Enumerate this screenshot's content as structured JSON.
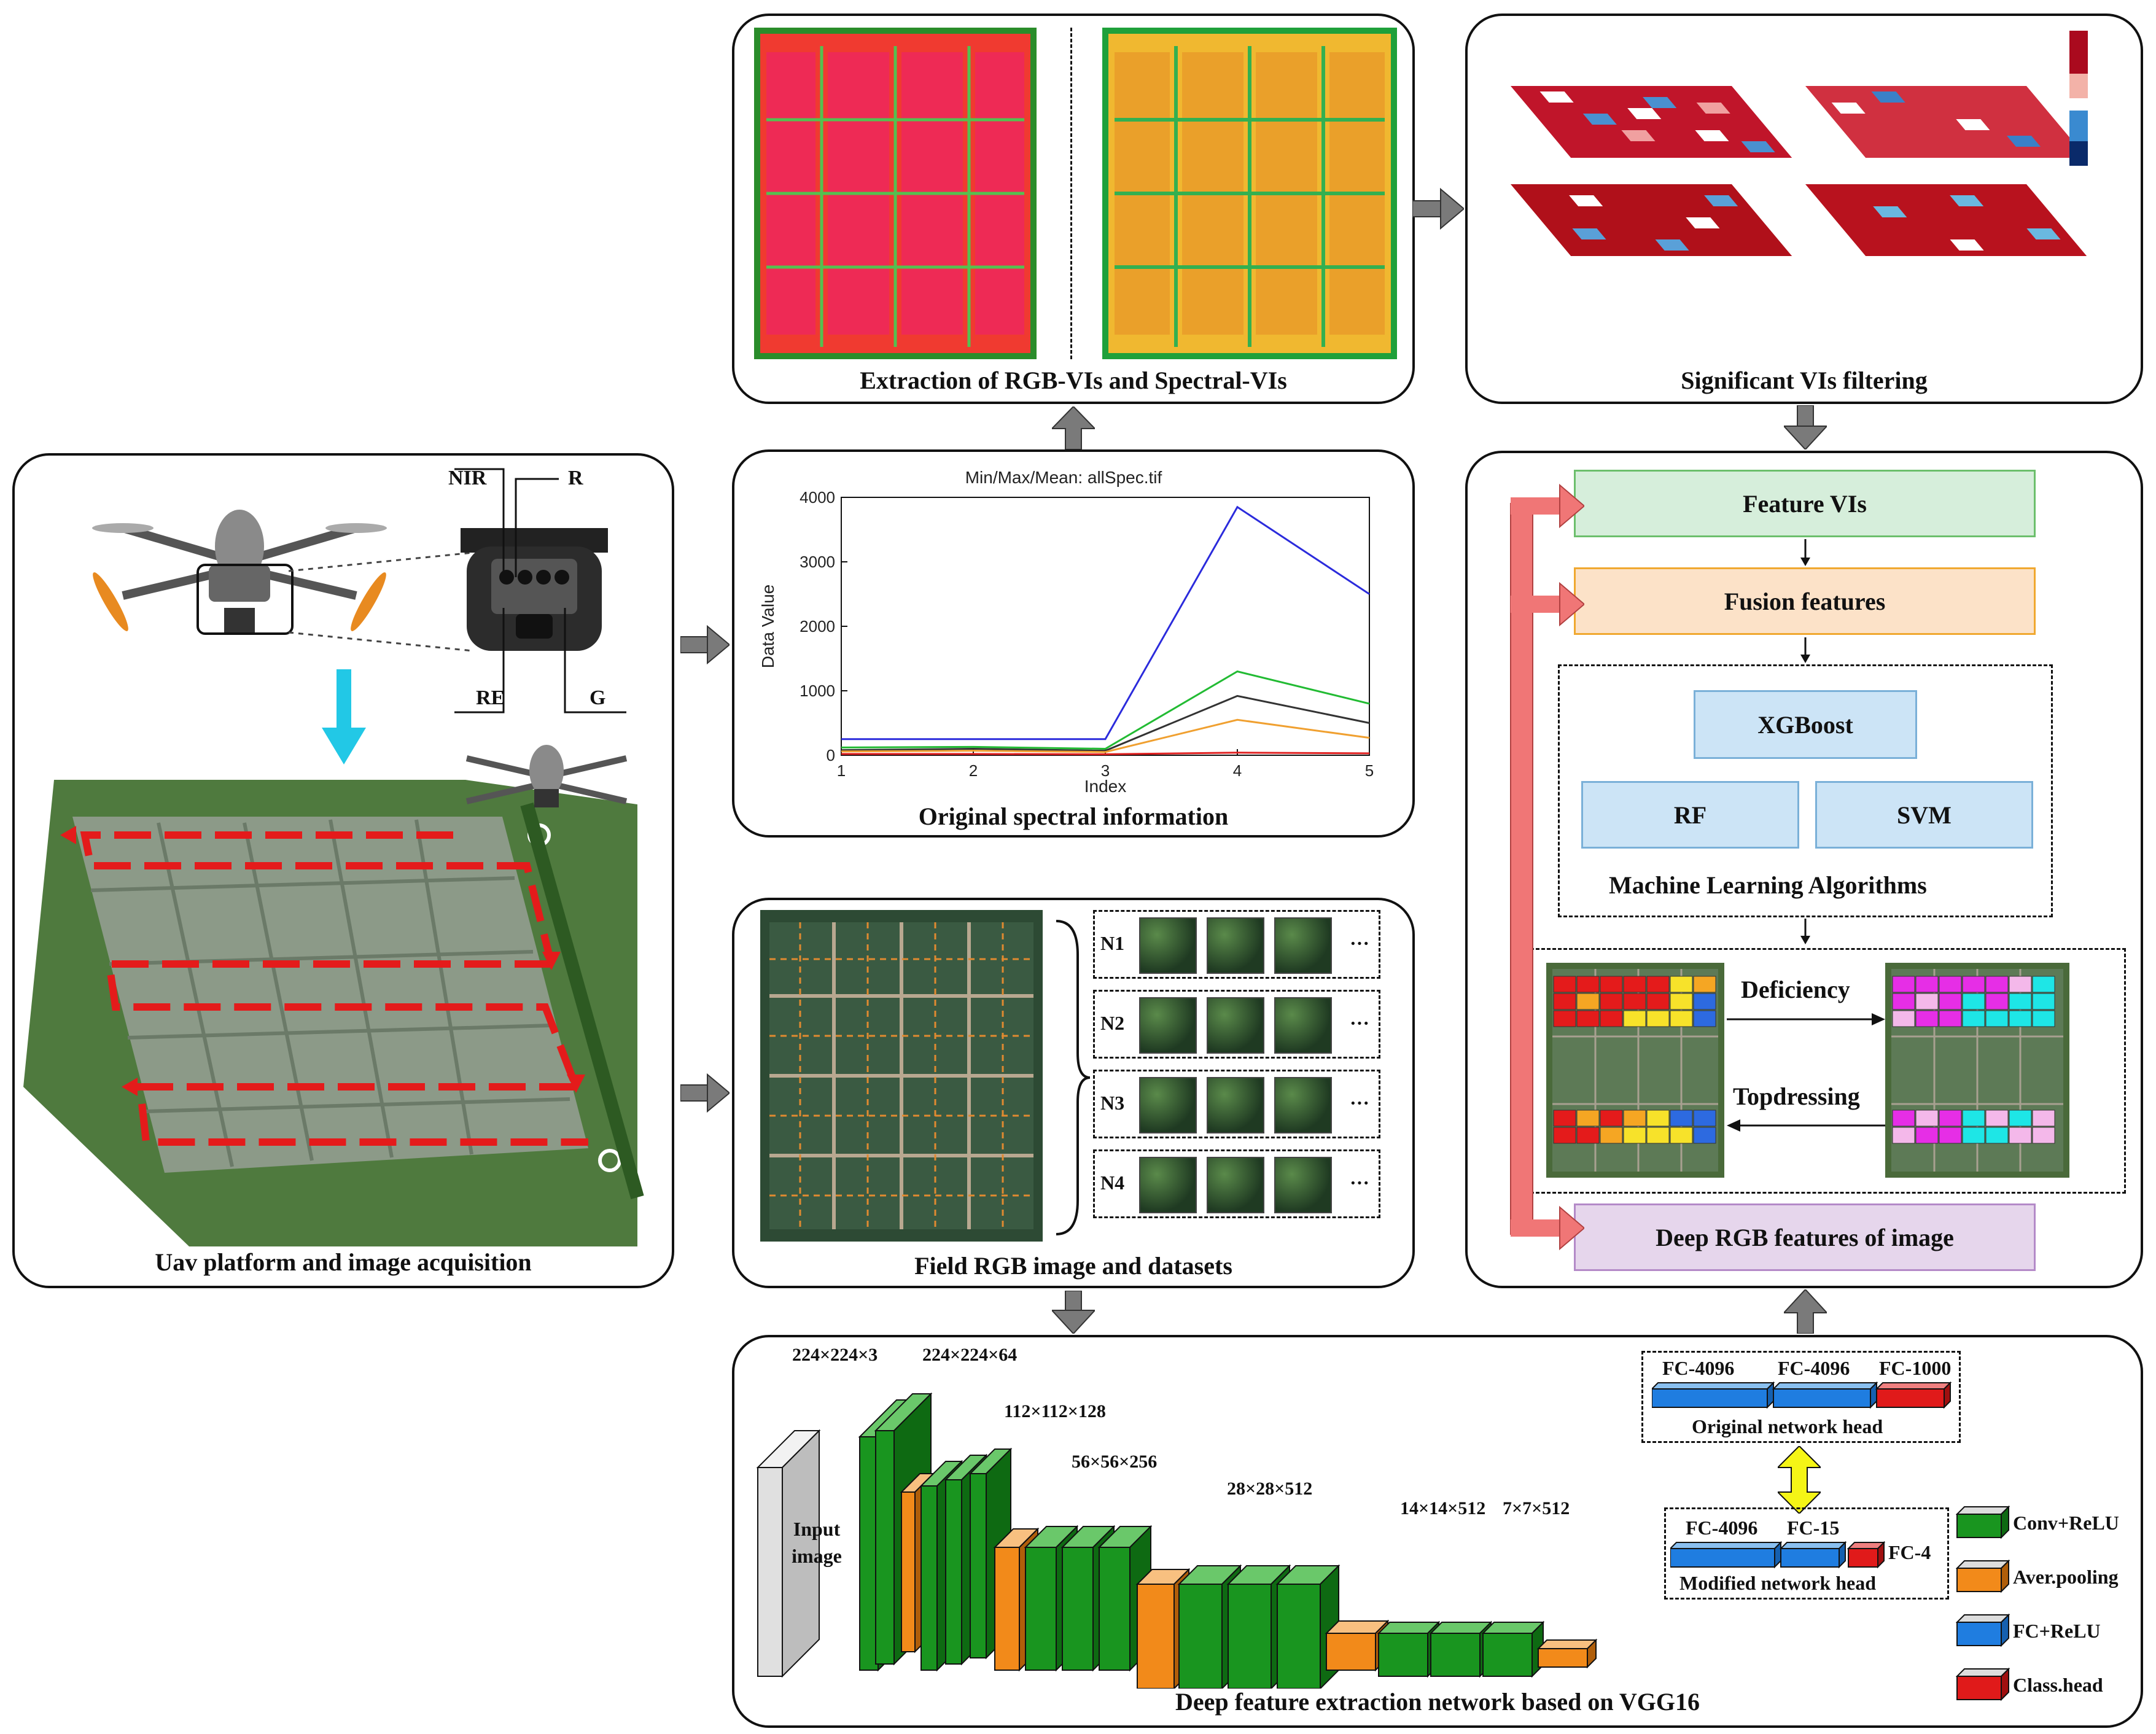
{
  "panels": {
    "uav": {
      "title": "Uav platform and image acquisition",
      "bands": [
        "NIR",
        "R",
        "RE",
        "G"
      ]
    },
    "extraction": {
      "title": "Extraction of RGB-VIs and Spectral-VIs"
    },
    "significant": {
      "title": "Significant VIs filtering"
    },
    "spectral": {
      "title": "Original spectral information"
    },
    "field": {
      "title": "Field RGB image and datasets",
      "rows": [
        "N1",
        "N2",
        "N3",
        "N4"
      ],
      "ellipsis": "···"
    },
    "vgg": {
      "title": "Deep feature extraction network based on VGG16",
      "input_label": "Input image",
      "dims": [
        "224×224×3",
        "224×224×64",
        "112×112×128",
        "56×56×256",
        "28×28×512",
        "14×14×512",
        "7×7×512"
      ],
      "original_head": {
        "caption": "Original network head",
        "labels": [
          "FC-4096",
          "FC-4096",
          "FC-1000"
        ]
      },
      "modified_head": {
        "caption": "Modified network head",
        "labels": [
          "FC-4096",
          "FC-15",
          "FC-4"
        ]
      },
      "legend": [
        "Conv+ReLU",
        "Aver.pooling",
        "FC+ReLU",
        "Class.head"
      ]
    },
    "ml": {
      "feature_vis": "Feature VIs",
      "fusion": "Fusion features",
      "algorithms": [
        "XGBoost",
        "RF",
        "SVM"
      ],
      "algorithms_caption": "Machine Learning Algorithms",
      "deficiency": "Deficiency",
      "topdressing": "Topdressing",
      "deep_rgb": "Deep RGB features of image"
    }
  },
  "chart_data": {
    "type": "line",
    "title": "Min/Max/Mean: allSpec.tif",
    "xlabel": "Index",
    "ylabel": "Data Value",
    "x": [
      1,
      2,
      3,
      4,
      5
    ],
    "xlim": [
      1,
      5
    ],
    "ylim": [
      0,
      4000
    ],
    "xticks": [
      "1",
      "2",
      "3",
      "4",
      "5"
    ],
    "yticks": [
      "0",
      "1000",
      "2000",
      "3000",
      "4000"
    ],
    "series": [
      {
        "name": "blue",
        "color": "#2b2bdc",
        "values": [
          250,
          250,
          250,
          3850,
          2500
        ]
      },
      {
        "name": "green",
        "color": "#22bb33",
        "values": [
          120,
          130,
          100,
          1300,
          800
        ]
      },
      {
        "name": "black",
        "color": "#333333",
        "values": [
          80,
          100,
          70,
          920,
          500
        ]
      },
      {
        "name": "orange",
        "color": "#f0a030",
        "values": [
          60,
          70,
          50,
          550,
          270
        ]
      },
      {
        "name": "red",
        "color": "#e02020",
        "values": [
          20,
          20,
          15,
          40,
          30
        ]
      }
    ]
  }
}
